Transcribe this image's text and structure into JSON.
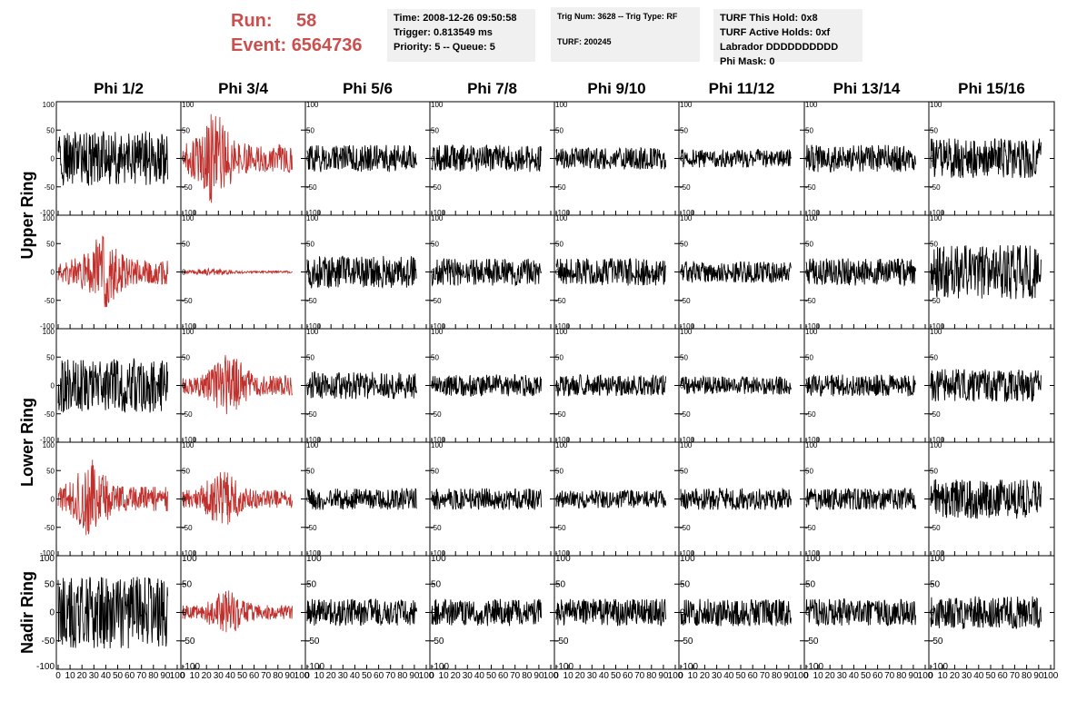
{
  "header": {
    "run_label": "Run:",
    "run_value": "58",
    "event_label": "Event:",
    "event_value": "6564736"
  },
  "info_boxes": {
    "time": "Time: 2008-12-26 09:50:58",
    "trigger": "Trigger: 0.813549 ms",
    "priority": "Priority: 5 -- Queue: 5",
    "trig_num": "Trig Num: 3628 -- Trig Type: RF",
    "turf": "TURF: 200245",
    "turf_this_hold": "TURF This Hold: 0x8",
    "turf_active_holds": "TURF Active Holds: 0xf",
    "labrador": "Labrador DDDDDDDDDD",
    "phi_mask": "Phi Mask: 0"
  },
  "colors": {
    "waveform": "#000000",
    "highlight": "#c0302c",
    "run_text": "#c9504f"
  },
  "chart_data": {
    "type": "line",
    "columns": [
      "Phi 1/2",
      "Phi 3/4",
      "Phi 5/6",
      "Phi 7/8",
      "Phi 9/10",
      "Phi 11/12",
      "Phi 13/14",
      "Phi 15/16"
    ],
    "ring_labels": [
      {
        "label": "Upper Ring",
        "rows": [
          0,
          1
        ]
      },
      {
        "label": "Lower Ring",
        "rows": [
          2,
          3
        ]
      },
      {
        "label": "Nadir Ring",
        "rows": [
          4
        ]
      }
    ],
    "xlim": [
      0,
      100
    ],
    "ylim": [
      -100,
      100
    ],
    "y_ticks": [
      -100,
      -50,
      0,
      50,
      100
    ],
    "x_tick_labels": [
      "0",
      "10",
      "20",
      "30",
      "40",
      "50",
      "60",
      "70",
      "80",
      "90",
      "100"
    ],
    "grid": false,
    "amplitude_approx": [
      [
        30,
        35,
        15,
        15,
        12,
        10,
        15,
        22
      ],
      [
        30,
        3,
        18,
        15,
        15,
        12,
        15,
        30
      ],
      [
        30,
        25,
        15,
        12,
        12,
        10,
        12,
        18
      ],
      [
        30,
        22,
        12,
        12,
        10,
        12,
        12,
        22
      ],
      [
        40,
        18,
        15,
        15,
        15,
        15,
        15,
        18
      ]
    ],
    "highlighted_panels": [
      [
        0,
        1
      ],
      [
        1,
        0
      ],
      [
        1,
        1
      ],
      [
        2,
        1
      ],
      [
        3,
        0
      ],
      [
        3,
        1
      ],
      [
        4,
        1
      ]
    ]
  }
}
